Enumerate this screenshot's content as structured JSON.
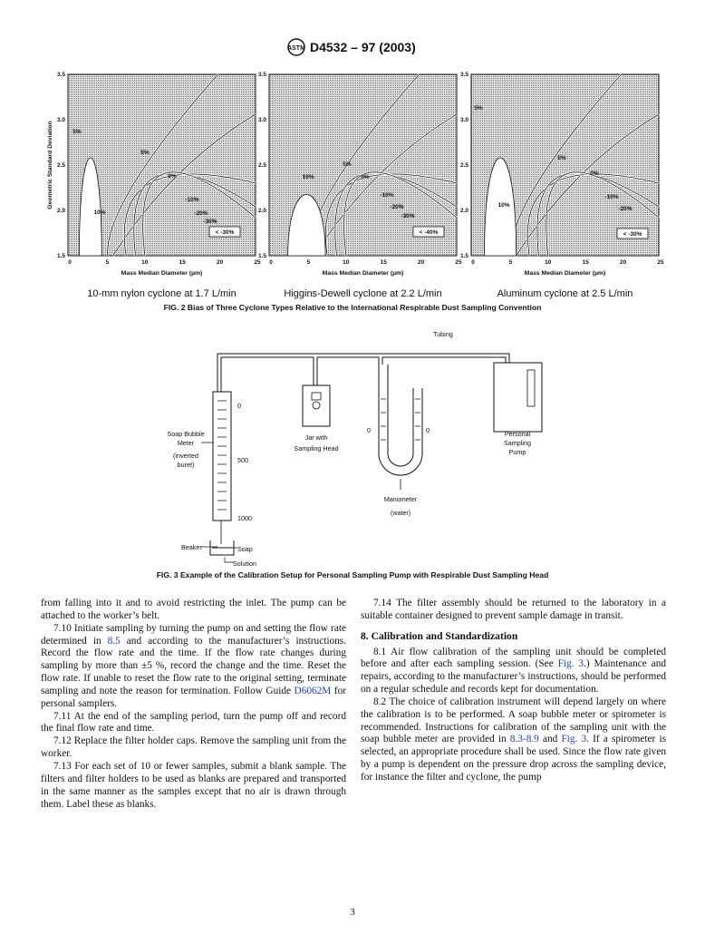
{
  "header": {
    "designation": "D4532 – 97 (2003)"
  },
  "figure_2": {
    "y_axis_label": "Geometric Standard Deviation",
    "x_axis_label": "Mass Median Diameter (µm)",
    "y_ticks": [
      "1.5",
      "2.0",
      "2.5",
      "3.0",
      "3.5"
    ],
    "x_ticks": [
      "0",
      "5",
      "10",
      "15",
      "20",
      "25"
    ],
    "panels": [
      {
        "caption": "10-mm nylon cyclone at 1.7 L/min",
        "contour_labels": [
          "5%",
          "5%",
          "0%",
          "-10%",
          "-20%",
          "-30%",
          "10%"
        ],
        "legend": "< -30%"
      },
      {
        "caption": "Higgins-Dewell cyclone at 2.2 L/min",
        "contour_labels": [
          "10%",
          "5%",
          "0%",
          "-10%",
          "-20%",
          "-30%"
        ],
        "legend": "< -40%"
      },
      {
        "caption": "Aluminum cyclone at 2.5 L/min",
        "contour_labels": [
          "5%",
          "5%",
          "0%",
          "-10%",
          "-20%",
          "10%"
        ],
        "legend": "< -30%"
      }
    ],
    "caption": "FIG. 2 Bias of Three Cyclone Types Relative to the International Respirable Dust Sampling Convention"
  },
  "figure_3": {
    "labels": {
      "tubing": "Tubing",
      "buret_scale": [
        "0",
        "500",
        "1000"
      ],
      "soap_bubble_meter": [
        "Soap Bubble",
        "Meter"
      ],
      "inverted_buret": [
        "(inverted",
        "buret)"
      ],
      "jar": [
        "Jar with",
        "Sampling Head"
      ],
      "manometer_scale": [
        "0",
        "0"
      ],
      "manometer": "Manometer",
      "water": "(water)",
      "pump": [
        "Personal",
        "Sampling",
        "Pump"
      ],
      "beaker": "Beaker",
      "soap_solution": [
        "Soap",
        "Solution"
      ]
    },
    "caption": "FIG. 3 Example of the Calibration Setup for Personal Sampling Pump with Respirable Dust Sampling Head"
  },
  "body": {
    "left": [
      [
        {
          "text": "from falling into it and to avoid restricting the inlet. The pump can be attached to the worker’s belt."
        }
      ],
      [
        {
          "text": "7.10 Initiate sampling by turning the pump on and setting the flow rate determined in "
        },
        {
          "link": "8.5"
        },
        {
          "text": " and according to the manufacturer’s instructions. Record the flow rate and the time. If the flow rate changes during sampling by more than ±5 %, record the change and the time. Reset the flow rate. If unable to reset the flow rate to the original setting, terminate sampling and note the reason for termination. Follow Guide "
        },
        {
          "link": "D6062M"
        },
        {
          "text": " for personal samplers."
        }
      ],
      [
        {
          "text": "7.11 At the end of the sampling period, turn the pump off and record the final flow rate and time."
        }
      ],
      [
        {
          "text": "7.12 Replace the filter holder caps. Remove the sampling unit from the worker."
        }
      ],
      [
        {
          "text": "7.13 For each set of 10 or fewer samples, submit a blank sample. The filters and filter holders to be used as blanks are prepared and transported in the same manner as the samples except that no air is drawn through them. Label these as blanks."
        }
      ]
    ],
    "right_first": [
      {
        "text": "7.14 The filter assembly should be returned to the laboratory in a suitable container designed to prevent sample damage in transit."
      }
    ],
    "section_heading": "8. Calibration and Standardization",
    "right": [
      [
        {
          "text": "8.1 Air flow calibration of the sampling unit should be completed before and after each sampling session. (See "
        },
        {
          "link": "Fig. 3"
        },
        {
          "text": ".) Maintenance and repairs, according to the manufacturer’s instructions, should be performed on a regular schedule and records kept for documentation."
        }
      ],
      [
        {
          "text": "8.2 The choice of calibration instrument will depend largely on where the calibration is to be performed. A soap bubble meter or spirometer is recommended. Instructions for calibration of the sampling unit with the soap bubble meter are provided in "
        },
        {
          "link": "8.3-8.9"
        },
        {
          "text": " and "
        },
        {
          "link": "Fig. 3"
        },
        {
          "text": ". If a spirometer is selected, an appropriate procedure shall be used. Since the flow rate given by a pump is dependent on the pressure drop across the sampling device, for instance the filter and cyclone, the pump"
        }
      ]
    ]
  },
  "page_number": "3"
}
